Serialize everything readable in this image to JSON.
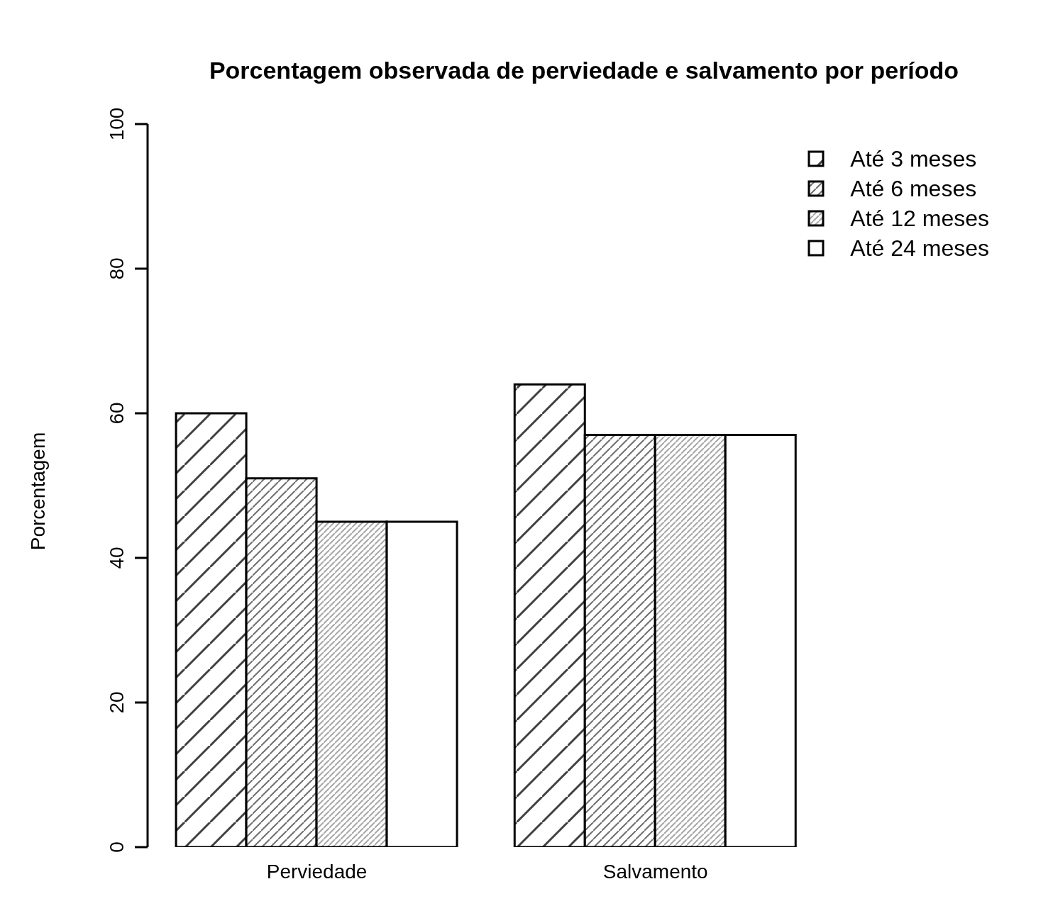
{
  "chart_data": {
    "type": "bar",
    "title": "Porcentagem observada de perviedade e salvamento por período",
    "ylabel": "Porcentagem",
    "categories": [
      "Perviedade",
      "Salvamento"
    ],
    "series": [
      {
        "name": "Até 3 meses",
        "color": "#000000",
        "values": [
          60,
          64
        ]
      },
      {
        "name": "Até 6 meses",
        "color": "#000000",
        "values": [
          51,
          57
        ]
      },
      {
        "name": "Até 12 meses",
        "color": "#000000",
        "values": [
          45,
          57
        ]
      },
      {
        "name": "Até 24 meses",
        "color": "#000000",
        "values": [
          45,
          57
        ]
      }
    ],
    "ylim": [
      0,
      100
    ],
    "yticks": [
      0,
      20,
      40,
      60,
      80,
      100
    ],
    "grid": false,
    "legend": "top right"
  }
}
